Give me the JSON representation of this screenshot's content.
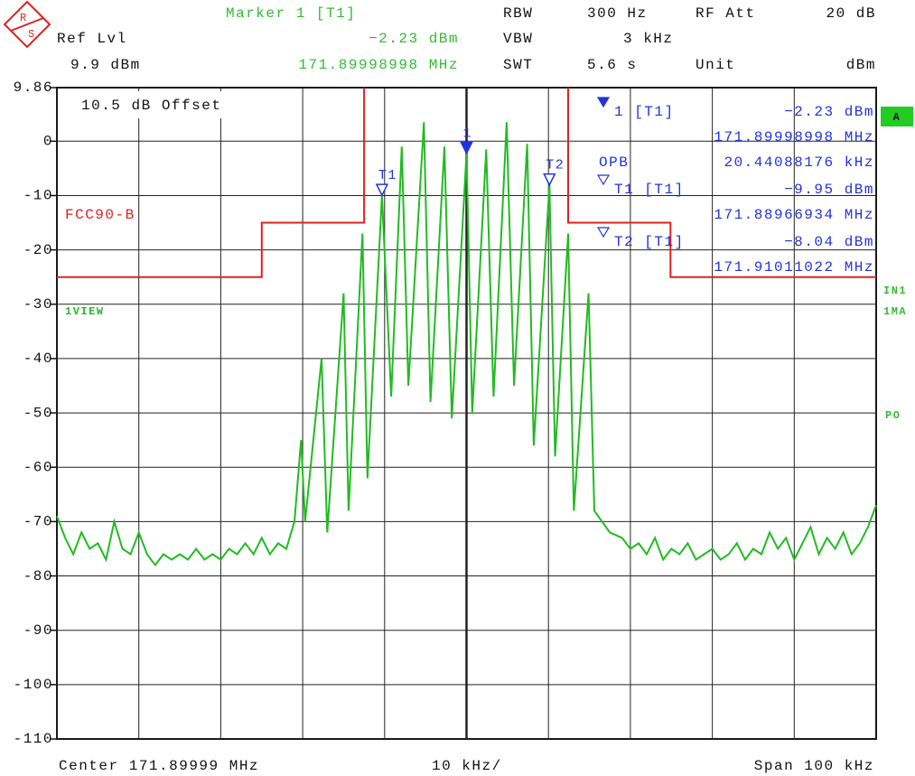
{
  "header": {
    "marker_label": "Marker 1 [T1]",
    "marker_level": "−2.23 dBm",
    "marker_freq": "171.89998998 MHz",
    "ref_lvl_label": "Ref Lvl",
    "ref_lvl": "9.9 dBm",
    "rbw_label": "RBW",
    "rbw": "300 Hz",
    "rf_att_label": "RF Att",
    "rf_att": "20 dB",
    "vbw_label": "VBW",
    "vbw": "3 kHz",
    "swt_label": "SWT",
    "swt": "5.6 s",
    "unit_label": "Unit",
    "unit": "dBm"
  },
  "logo": {
    "r": "R",
    "s": "S"
  },
  "side": {
    "a": "A",
    "in1": "IN1",
    "ma": "1MA",
    "po": "PO"
  },
  "chart_data": {
    "type": "line",
    "offset_note": "10.5 dB Offset",
    "ylim": [
      -110,
      9.86
    ],
    "yticks": [
      9.86,
      0,
      -10,
      -20,
      -30,
      -40,
      -50,
      -60,
      -70,
      -80,
      -90,
      -100,
      -110
    ],
    "xlim": [
      171.84999,
      171.94999
    ],
    "xticks": [
      171.84999,
      171.85999,
      171.86999,
      171.87999,
      171.88999,
      171.89999,
      171.90999,
      171.91999,
      171.92999,
      171.93999,
      171.94999
    ],
    "grid": true,
    "series": [
      {
        "name": "1VIEW",
        "color": "#22bb22",
        "x": [
          171.84999,
          171.85099,
          171.85199,
          171.85299,
          171.85399,
          171.85499,
          171.85599,
          171.85699,
          171.85799,
          171.85899,
          171.85999,
          171.86099,
          171.86199,
          171.86299,
          171.86399,
          171.86499,
          171.86599,
          171.86699,
          171.86799,
          171.86899,
          171.86999,
          171.87099,
          171.87199,
          171.87299,
          171.87399,
          171.87499,
          171.87599,
          171.87699,
          171.87799,
          171.87899,
          171.87979,
          171.88029,
          171.88229,
          171.88299,
          171.88499,
          171.88559,
          171.88729,
          171.88789,
          171.88967,
          171.89079,
          171.89209,
          171.89289,
          171.89479,
          171.89559,
          171.89729,
          171.89819,
          171.89999,
          171.90069,
          171.90239,
          171.90329,
          171.90489,
          171.90579,
          171.90739,
          171.90819,
          171.91011,
          171.91079,
          171.91239,
          171.91309,
          171.91489,
          171.91559,
          171.91749,
          171.91899,
          171.91999,
          171.92099,
          171.92199,
          171.92299,
          171.92399,
          171.92499,
          171.92599,
          171.92699,
          171.92799,
          171.92899,
          171.92999,
          171.93099,
          171.93199,
          171.93299,
          171.93399,
          171.93499,
          171.93599,
          171.93699,
          171.93799,
          171.93899,
          171.93999,
          171.94099,
          171.94199,
          171.94299,
          171.94399,
          171.94499,
          171.94599,
          171.94699,
          171.94799,
          171.94899,
          171.94999
        ],
        "values": [
          -69,
          -73,
          -76,
          -72,
          -75,
          -74,
          -77,
          -70,
          -75,
          -76,
          -72,
          -76,
          -78,
          -76,
          -77,
          -76,
          -77,
          -75,
          -77,
          -76,
          -77,
          -75,
          -76,
          -74,
          -76,
          -73,
          -76,
          -74,
          -75,
          -70,
          -55,
          -70,
          -40,
          -72,
          -28,
          -68,
          -17,
          -62,
          -9.95,
          -47,
          -1,
          -45,
          3.5,
          -48,
          -1,
          -51,
          -2.23,
          -50,
          -1.5,
          -47,
          3.5,
          -45,
          -0.5,
          -56,
          -8.04,
          -58,
          -17,
          -68,
          -28,
          -68,
          -72,
          -73,
          -75,
          -74,
          -76,
          -73,
          -77,
          -75,
          -76,
          -74,
          -77,
          -76,
          -75,
          -77,
          -76,
          -74,
          -77,
          -75,
          -76,
          -72,
          -75,
          -73,
          -77,
          -74,
          -71,
          -76,
          -73,
          -75,
          -72,
          -76,
          -74,
          -71,
          -67
        ]
      },
      {
        "name": "FCC90-B",
        "color": "#dd2222",
        "x": [
          171.84999,
          171.87499,
          171.87499,
          171.88749,
          171.88749,
          null,
          171.91239,
          171.91239,
          171.92489,
          171.92489,
          171.94999
        ],
        "values": [
          -25,
          -25,
          -15,
          -15,
          9.86,
          null,
          9.86,
          -15,
          -15,
          -25,
          -25
        ]
      }
    ],
    "markers": [
      {
        "tag": "1",
        "name": "1 [T1]",
        "x": 171.89999,
        "value": -2.23,
        "value_label": "−2.23 dBm",
        "freq_label": "171.89998998 MHz",
        "filled": true
      },
      {
        "tag": "T1",
        "name": "T1 [T1]",
        "x": 171.88967,
        "value": -9.95,
        "value_label": "−9.95 dBm",
        "freq_label": "171.88966934 MHz",
        "filled": false
      },
      {
        "tag": "T2",
        "name": "T2 [T1]",
        "x": 171.91011,
        "value": -8.04,
        "value_label": "−8.04 dBm",
        "freq_label": "171.91011022 MHz",
        "filled": false
      }
    ],
    "obw": {
      "label": "OPB",
      "value_label": "20.44088176 kHz"
    },
    "footer": {
      "center": "Center 171.89999 MHz",
      "div": "10 kHz/",
      "span": "Span 100 kHz"
    }
  }
}
